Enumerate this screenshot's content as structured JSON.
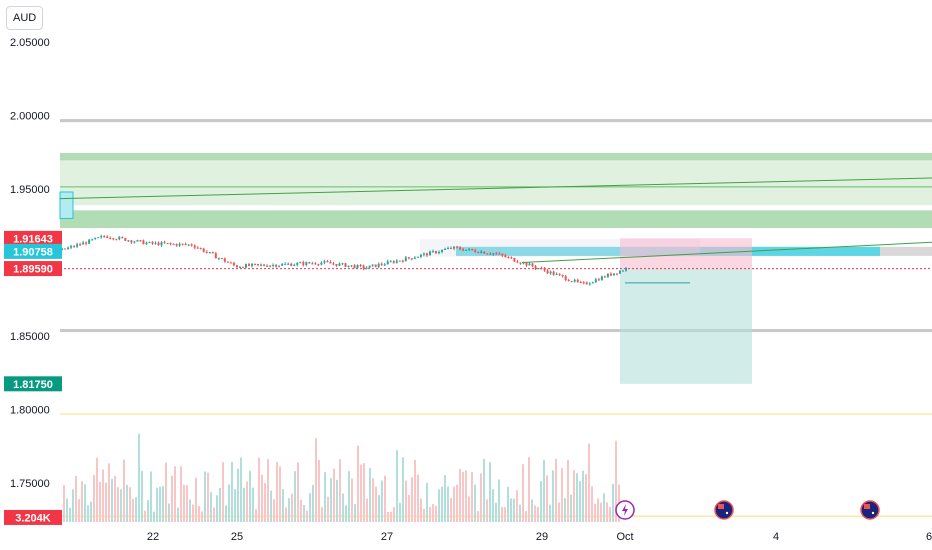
{
  "currency_label": "AUD",
  "colors": {
    "up": "#26a69a",
    "down": "#ef5350",
    "green_zone": "#a5d6a7",
    "green_zone_line": "#66bb6a",
    "trend_line": "#43a047",
    "supply_zone": "#4dd0e1",
    "gray_band": "#c9c9c9",
    "volume_up": "#b2dfdb",
    "volume_down": "#f8c6c6",
    "yellow_line": "#f7e06b",
    "red_dotted": "#f23645",
    "stop_zone": "#f8bbd0",
    "target_zone": "#b2dfdb",
    "badge_red": "#f23645",
    "badge_blue": "#26c6da",
    "badge_teal": "#089981"
  },
  "chart_data": {
    "type": "candlestick",
    "ylim": [
      1.7235,
      2.0786
    ],
    "ylabel": "",
    "xlabel": "",
    "title": "",
    "y_ticks": [
      "2.05000",
      "2.00000",
      "1.95000",
      "1.85000",
      "1.80000",
      "1.75000"
    ],
    "x_ticks": [
      "22",
      "25",
      "27",
      "29",
      "Oct",
      "4",
      "6"
    ],
    "price_badges": [
      {
        "label": "1.91643",
        "value": 1.91643,
        "color": "red"
      },
      {
        "label": "1.90758",
        "value": 1.90758,
        "color": "blue"
      },
      {
        "label": "1.89590",
        "value": 1.8959,
        "color": "red"
      },
      {
        "label": "1.81750",
        "value": 1.8175,
        "color": "teal"
      },
      {
        "label": "3.204K",
        "value": 1.7266,
        "color": "red"
      }
    ],
    "horizontal_bands": [
      {
        "name": "gray-band-top",
        "y1": 1.9976,
        "y2": 1.9955
      },
      {
        "name": "gray-band-bottom",
        "y1": 1.8548,
        "y2": 1.8527
      }
    ],
    "zones": {
      "green_upper": {
        "y1": 1.9745,
        "y2": 1.9695
      },
      "green_light": {
        "y1": 1.9695,
        "y2": 1.939
      },
      "green_lower": {
        "y1": 1.9355,
        "y2": 1.9235
      },
      "supply": {
        "y1": 1.9107,
        "y2": 1.9045
      }
    },
    "ohlc_trend": [
      {
        "date": "Sep 20",
        "close": 1.9085
      },
      {
        "date": "Sep 21",
        "close": 1.918
      },
      {
        "date": "Sep 22",
        "close": 1.913
      },
      {
        "date": "Sep 23",
        "close": 1.912
      },
      {
        "date": "Sep 24",
        "close": 1.8975
      },
      {
        "date": "Sep 25",
        "close": 1.8985
      },
      {
        "date": "Sep 26",
        "close": 1.9
      },
      {
        "date": "Sep 27",
        "close": 1.8965
      },
      {
        "date": "Sep 28",
        "close": 1.903
      },
      {
        "date": "Sep 29",
        "close": 1.91
      },
      {
        "date": "Sep 29",
        "close": 1.906
      },
      {
        "date": "Sep 30",
        "close": 1.896
      },
      {
        "date": "Oct 1",
        "close": 1.885
      },
      {
        "date": "Oct 1",
        "close": 1.8959
      }
    ],
    "volume_axis_value": "3.204K"
  },
  "events": [
    {
      "name": "earnings-event-icon",
      "date": "Oct 1"
    },
    {
      "name": "australia-flag-event-icon",
      "date": "Oct 3"
    },
    {
      "name": "australia-flag-event-icon-2",
      "date": "Oct 5"
    }
  ]
}
